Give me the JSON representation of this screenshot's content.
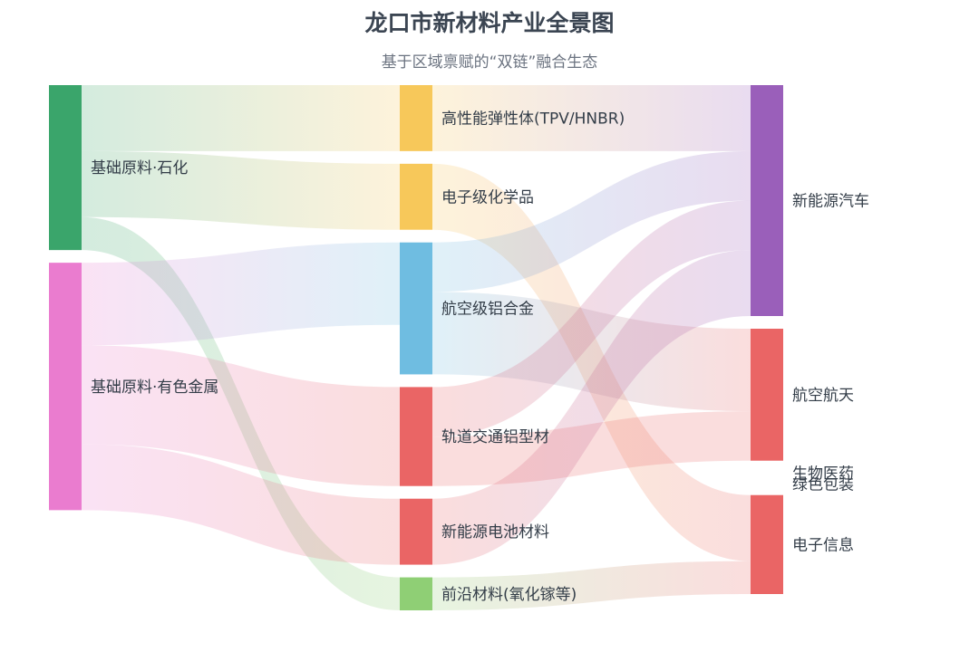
{
  "title": "龙口市新材料产业全景图",
  "subtitle": "基于区域禀赋的“双链”融合生态",
  "chart_data": {
    "type": "sankey",
    "title": "龙口市新材料产业全景图",
    "subtitle": "基于区域禀赋的“双链”融合生态",
    "nodes": [
      {
        "id": "src_petro",
        "name": "基础原料·石化",
        "column": 0,
        "color": "#3aa56b"
      },
      {
        "id": "src_metal",
        "name": "基础原料·有色金属",
        "column": 0,
        "color": "#ea7ccf"
      },
      {
        "id": "m_tpv",
        "name": "高性能弹性体(TPV/HNBR)",
        "column": 1,
        "color": "#f7c85a"
      },
      {
        "id": "m_echem",
        "name": "电子级化学品",
        "column": 1,
        "color": "#f7c85a"
      },
      {
        "id": "m_alloy",
        "name": "航空级铝合金",
        "column": 1,
        "color": "#6fbde1"
      },
      {
        "id": "m_rail",
        "name": "轨道交通铝型材",
        "column": 1,
        "color": "#ea6565"
      },
      {
        "id": "m_battery",
        "name": "新能源电池材料",
        "column": 1,
        "color": "#ea6565"
      },
      {
        "id": "m_frontier",
        "name": "前沿材料(氧化镓等)",
        "column": 1,
        "color": "#8fcf75"
      },
      {
        "id": "a_nev",
        "name": "新能源汽车",
        "column": 2,
        "color": "#9a5fba"
      },
      {
        "id": "a_aero",
        "name": "航空航天",
        "column": 2,
        "color": "#ea6565"
      },
      {
        "id": "a_bio",
        "name": "生物医药",
        "column": 2,
        "color": "#7dbf6a"
      },
      {
        "id": "a_green",
        "name": "绿色包装",
        "column": 2,
        "color": "#7dbf6a"
      },
      {
        "id": "a_elec",
        "name": "电子信息",
        "column": 2,
        "color": "#ea6565"
      }
    ],
    "links": [
      {
        "source": "src_petro",
        "target": "m_tpv",
        "value": 20
      },
      {
        "source": "src_petro",
        "target": "m_echem",
        "value": 20
      },
      {
        "source": "src_petro",
        "target": "m_frontier",
        "value": 10
      },
      {
        "source": "src_metal",
        "target": "m_alloy",
        "value": 25
      },
      {
        "source": "src_metal",
        "target": "m_rail",
        "value": 30
      },
      {
        "source": "src_metal",
        "target": "m_battery",
        "value": 20
      },
      {
        "source": "m_tpv",
        "target": "a_nev",
        "value": 20
      },
      {
        "source": "m_echem",
        "target": "a_elec",
        "value": 20
      },
      {
        "source": "m_alloy",
        "target": "a_nev",
        "value": 15
      },
      {
        "source": "m_alloy",
        "target": "a_aero",
        "value": 25
      },
      {
        "source": "m_rail",
        "target": "a_nev",
        "value": 15
      },
      {
        "source": "m_rail",
        "target": "a_aero",
        "value": 15
      },
      {
        "source": "m_battery",
        "target": "a_nev",
        "value": 20
      },
      {
        "source": "m_frontier",
        "target": "a_elec",
        "value": 10
      }
    ]
  }
}
